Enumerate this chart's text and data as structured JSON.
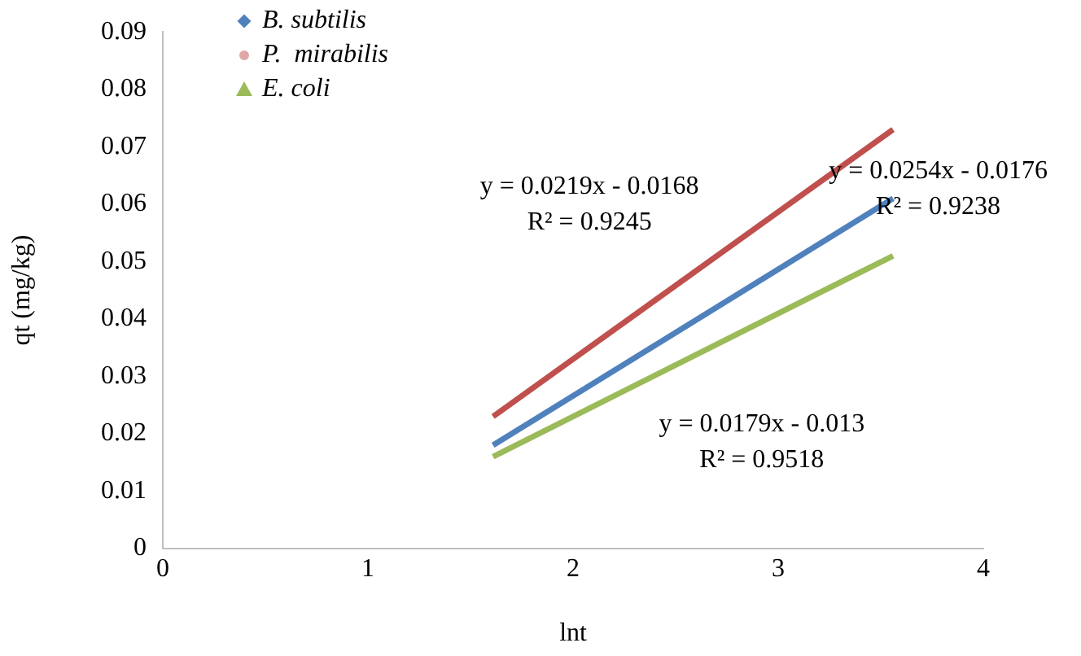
{
  "chart_data": {
    "type": "line",
    "xlabel": "lnt",
    "ylabel": "qt (mg/kg)",
    "xlim": [
      0,
      4
    ],
    "xticks": [
      0,
      1,
      2,
      3,
      4
    ],
    "ylim": [
      0,
      0.09
    ],
    "yticks": [
      0,
      0.01,
      0.02,
      0.03,
      0.04,
      0.05,
      0.06,
      0.07,
      0.08,
      0.09
    ],
    "grid": false,
    "x": [
      1.61,
      3.56
    ],
    "legend": "top left",
    "line_style": "solid",
    "series": [
      {
        "name": "B. subtilis",
        "color": "#4f81bd",
        "values": [
          0.018,
          0.061
        ]
      },
      {
        "name": "P.  mirabilis",
        "color": "#c0504d",
        "values": [
          0.023,
          0.073
        ]
      },
      {
        "name": "E. coli",
        "color": "#9bbb59",
        "values": [
          0.016,
          0.051
        ]
      }
    ],
    "annotations": [
      "y = 0.0219x - 0.0168\nR² = 0.9245",
      "y = 0.0254x - 0.0176\nR² = 0.9238",
      "y = 0.0179x - 0.013\nR² = 0.9518"
    ]
  }
}
